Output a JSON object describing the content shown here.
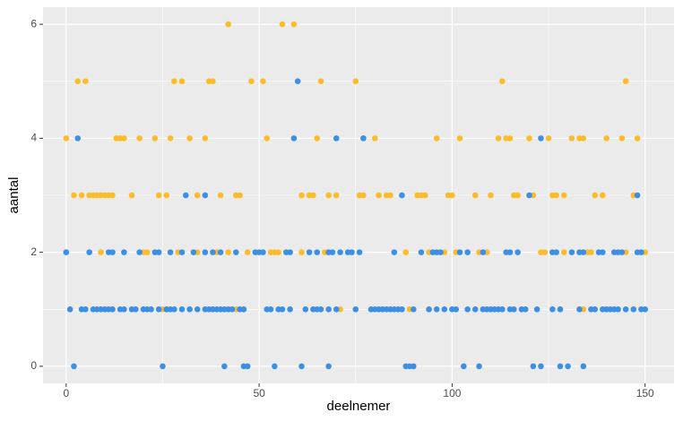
{
  "chart_data": {
    "type": "scatter",
    "x_label": "deelnemer",
    "y_label": "aantal",
    "xlim": [
      -6,
      157.5
    ],
    "ylim": [
      -0.3,
      6.3
    ],
    "xticks": [
      0,
      50,
      100,
      150
    ],
    "yticks": [
      0,
      2,
      4,
      6
    ],
    "xminor": [
      25,
      75,
      125
    ],
    "yminor": [
      1,
      3,
      5
    ],
    "grid": true,
    "panel_color": "#ebebeb",
    "series": [
      {
        "color": "#fbbc2c",
        "x": [
          42,
          56,
          59,
          3,
          5,
          28,
          30,
          37,
          38,
          48,
          51,
          66,
          75,
          113,
          145,
          0,
          13,
          14,
          15,
          19,
          23,
          27,
          32,
          36,
          52,
          65,
          77,
          80,
          96,
          102,
          112,
          114,
          115,
          120,
          125,
          131,
          133,
          134,
          140,
          144,
          148,
          2,
          4,
          6,
          7,
          8,
          9,
          10,
          11,
          12,
          17,
          24,
          26,
          34,
          40,
          44,
          45,
          61,
          63,
          64,
          68,
          70,
          76,
          77,
          81,
          83,
          84,
          91,
          92,
          93,
          99,
          100,
          106,
          110,
          116,
          117,
          121,
          126,
          127,
          129,
          137,
          139,
          147,
          0,
          9,
          20,
          21,
          29,
          33,
          34,
          39,
          42,
          47,
          53,
          54,
          55,
          61,
          67,
          88,
          94,
          98,
          101,
          107,
          109,
          123,
          124,
          129,
          135,
          136,
          145,
          150,
          25,
          26,
          41,
          44,
          46,
          71,
          89,
          94,
          128,
          134
        ],
        "values": [
          6,
          6,
          6,
          5,
          5,
          5,
          5,
          5,
          5,
          5,
          5,
          5,
          5,
          5,
          5,
          4,
          4,
          4,
          4,
          4,
          4,
          4,
          4,
          4,
          4,
          4,
          4,
          4,
          4,
          4,
          4,
          4,
          4,
          4,
          4,
          4,
          4,
          4,
          4,
          4,
          4,
          3,
          3,
          3,
          3,
          3,
          3,
          3,
          3,
          3,
          3,
          3,
          3,
          3,
          3,
          3,
          3,
          3,
          3,
          3,
          3,
          3,
          3,
          3,
          3,
          3,
          3,
          3,
          3,
          3,
          3,
          3,
          3,
          3,
          3,
          3,
          3,
          3,
          3,
          3,
          3,
          3,
          3,
          2,
          2,
          2,
          2,
          2,
          2,
          2,
          2,
          2,
          2,
          2,
          2,
          2,
          2,
          2,
          2,
          2,
          2,
          2,
          2,
          2,
          2,
          2,
          2,
          2,
          2,
          2,
          2,
          1,
          1,
          1,
          1,
          1,
          1,
          1,
          1,
          1,
          1
        ]
      },
      {
        "color": "#3d8fe3",
        "x": [
          60,
          3,
          59,
          70,
          77,
          123,
          31,
          36,
          87,
          120,
          148,
          0,
          6,
          11,
          12,
          15,
          19,
          23,
          24,
          27,
          30,
          33,
          36,
          38,
          40,
          44,
          49,
          50,
          51,
          57,
          58,
          63,
          65,
          68,
          69,
          71,
          73,
          74,
          76,
          85,
          92,
          95,
          96,
          97,
          102,
          104,
          108,
          114,
          115,
          117,
          126,
          127,
          131,
          133,
          134,
          138,
          139,
          142,
          143,
          144,
          148,
          149,
          1,
          4,
          5,
          7,
          8,
          9,
          10,
          11,
          12,
          14,
          15,
          17,
          18,
          20,
          21,
          22,
          24,
          26,
          27,
          28,
          30,
          32,
          34,
          36,
          37,
          38,
          39,
          40,
          41,
          42,
          43,
          45,
          46,
          52,
          53,
          55,
          56,
          58,
          62,
          64,
          65,
          66,
          68,
          70,
          75,
          79,
          80,
          81,
          82,
          83,
          84,
          85,
          86,
          87,
          90,
          94,
          96,
          98,
          100,
          101,
          104,
          106,
          108,
          109,
          110,
          111,
          112,
          113,
          115,
          116,
          118,
          119,
          122,
          126,
          128,
          133,
          136,
          137,
          139,
          140,
          141,
          142,
          143,
          145,
          147,
          149,
          150,
          2,
          25,
          41,
          46,
          47,
          54,
          61,
          68,
          88,
          89,
          90,
          103,
          107,
          121,
          123,
          128,
          130,
          134
        ],
        "values": [
          5,
          4,
          4,
          4,
          4,
          4,
          3,
          3,
          3,
          3,
          3,
          2,
          2,
          2,
          2,
          2,
          2,
          2,
          2,
          2,
          2,
          2,
          2,
          2,
          2,
          2,
          2,
          2,
          2,
          2,
          2,
          2,
          2,
          2,
          2,
          2,
          2,
          2,
          2,
          2,
          2,
          2,
          2,
          2,
          2,
          2,
          2,
          2,
          2,
          2,
          2,
          2,
          2,
          2,
          2,
          2,
          2,
          2,
          2,
          2,
          2,
          2,
          1,
          1,
          1,
          1,
          1,
          1,
          1,
          1,
          1,
          1,
          1,
          1,
          1,
          1,
          1,
          1,
          1,
          1,
          1,
          1,
          1,
          1,
          1,
          1,
          1,
          1,
          1,
          1,
          1,
          1,
          1,
          1,
          1,
          1,
          1,
          1,
          1,
          1,
          1,
          1,
          1,
          1,
          1,
          1,
          1,
          1,
          1,
          1,
          1,
          1,
          1,
          1,
          1,
          1,
          1,
          1,
          1,
          1,
          1,
          1,
          1,
          1,
          1,
          1,
          1,
          1,
          1,
          1,
          1,
          1,
          1,
          1,
          1,
          1,
          1,
          1,
          1,
          1,
          1,
          1,
          1,
          1,
          1,
          1,
          1,
          1,
          1,
          0,
          0,
          0,
          0,
          0,
          0,
          0,
          0,
          0,
          0,
          0,
          0,
          0,
          0,
          0,
          0,
          0,
          0
        ]
      }
    ]
  }
}
